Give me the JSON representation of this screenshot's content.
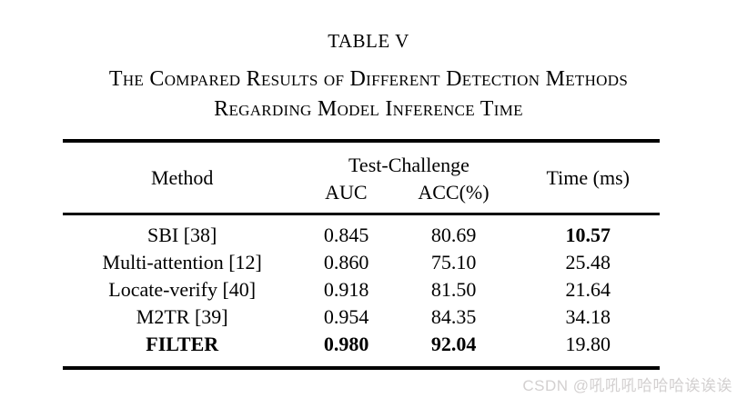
{
  "page": {
    "title": "TABLE V",
    "caption_line1": "The Compared Results of Different Detection Methods",
    "caption_line2": "Regarding Model Inference Time"
  },
  "table": {
    "header": {
      "method": "Method",
      "group": "Test-Challenge",
      "auc": "AUC",
      "acc": "ACC(%)",
      "time": "Time (ms)"
    },
    "rows": [
      {
        "method": "SBI [38]",
        "auc": "0.845",
        "acc": "80.69",
        "time": "10.57",
        "bold": [
          "time"
        ]
      },
      {
        "method": "Multi-attention [12]",
        "auc": "0.860",
        "acc": "75.10",
        "time": "25.48",
        "bold": []
      },
      {
        "method": "Locate-verify [40]",
        "auc": "0.918",
        "acc": "81.50",
        "time": "21.64",
        "bold": []
      },
      {
        "method": "M2TR [39]",
        "auc": "0.954",
        "acc": "84.35",
        "time": "34.18",
        "bold": []
      },
      {
        "method": "FILTER",
        "auc": "0.980",
        "acc": "92.04",
        "time": "19.80",
        "bold": [
          "method",
          "auc",
          "acc"
        ]
      }
    ]
  },
  "colors": {
    "text": "#000000",
    "rule": "#000000",
    "watermark": "#d3d0d0",
    "background": "#ffffff"
  },
  "watermark": {
    "text": "CSDN @吼吼吼哈哈哈诶诶诶"
  }
}
